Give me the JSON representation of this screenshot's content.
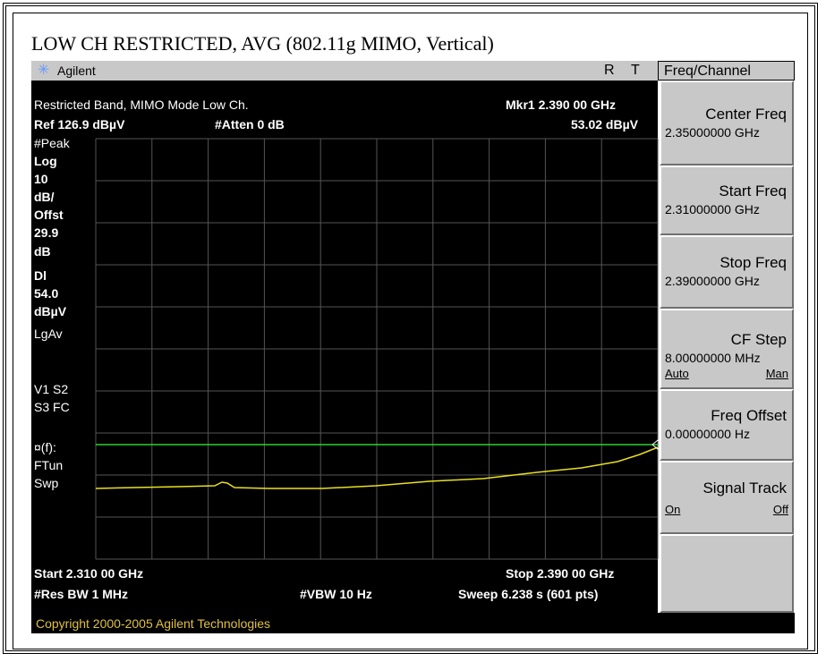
{
  "title": "LOW CH RESTRICTED, AVG (802.11g MIMO, Vertical)",
  "header": {
    "brand": "Agilent",
    "r": "R",
    "t": "T",
    "menu_title": "Freq/Channel"
  },
  "screen": {
    "line1": "Restricted Band, MIMO Mode Low Ch.",
    "marker": "Mkr1  2.390 00 GHz",
    "ref": "Ref 126.9 dBµV",
    "atten": "#Atten 0 dB",
    "marker_value": "53.02 dBµV",
    "left_labels": [
      "#Peak",
      "Log",
      "10",
      "dB/",
      "Offst",
      "29.9",
      "dB",
      "Dl",
      "54.0",
      "dBµV",
      "LgAv",
      "V1  S2",
      "S3  FC",
      "¤(f):",
      "FTun",
      "Swp"
    ],
    "start": "Start 2.310 00 GHz",
    "stop": "Stop 2.390 00 GHz",
    "res_bw": "#Res BW 1 MHz",
    "vbw": "#VBW 10 Hz",
    "sweep": "Sweep 6.238 s (601 pts)"
  },
  "softkeys": [
    {
      "label": "Center Freq",
      "value": "2.35000000 GHz"
    },
    {
      "label": "Start Freq",
      "value": "2.31000000 GHz"
    },
    {
      "label": "Stop Freq",
      "value": "2.39000000 GHz"
    },
    {
      "label": "CF Step",
      "value": "8.00000000 MHz",
      "options": [
        "Auto",
        "Man"
      ]
    },
    {
      "label": "Freq Offset",
      "value": "0.00000000  Hz"
    },
    {
      "label": "Signal Track",
      "options": [
        "On",
        "Off"
      ]
    }
  ],
  "copyright": "Copyright 2000-2005 Agilent Technologies"
}
